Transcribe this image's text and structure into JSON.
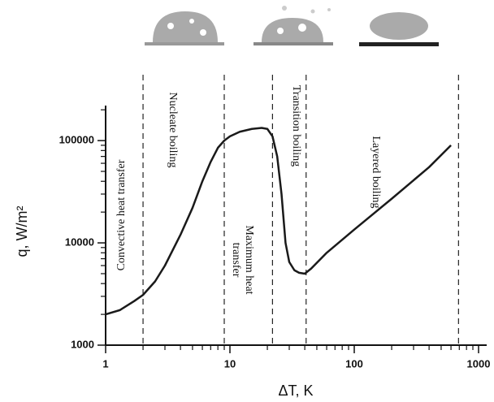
{
  "chart_data": {
    "type": "line",
    "xlabel": "ΔT, K",
    "ylabel": "q, W/m²",
    "xscale": "log",
    "yscale": "log",
    "xlim": [
      1,
      1000
    ],
    "ylim": [
      1000,
      220000
    ],
    "xticks": [
      1,
      10,
      100,
      1000
    ],
    "yticks": [
      1000,
      10000,
      100000
    ],
    "xminorticks": [
      2,
      3,
      4,
      5,
      6,
      7,
      8,
      9,
      20,
      30,
      40,
      50,
      60,
      70,
      80,
      90,
      200,
      300,
      400,
      500,
      600,
      700,
      800,
      900
    ],
    "yminorticks": [
      2000,
      3000,
      4000,
      5000,
      6000,
      7000,
      8000,
      9000,
      20000,
      30000,
      40000,
      50000,
      60000,
      70000,
      80000,
      90000,
      200000
    ],
    "regime_boundaries": [
      2,
      9,
      22,
      41,
      690
    ],
    "annotations": [
      {
        "lines": [
          "Convective heat transfer"
        ]
      },
      {
        "lines": [
          "Nucleate boiling"
        ]
      },
      {
        "lines": [
          "Maximum heat",
          "transfer"
        ]
      },
      {
        "lines": [
          "Transition boiling"
        ]
      },
      {
        "lines": [
          "Layered boiling"
        ]
      }
    ],
    "series": [
      {
        "color": "#1a1a1a",
        "x": [
          1,
          1.3,
          1.7,
          2,
          2.5,
          3,
          4,
          5,
          6,
          7,
          8,
          9,
          10,
          12,
          15,
          18,
          20,
          22,
          24,
          26,
          28,
          30,
          33,
          36,
          40,
          45,
          60,
          100,
          200,
          400,
          600
        ],
        "values": [
          2000,
          2200,
          2700,
          3100,
          4200,
          6000,
          12000,
          22000,
          40000,
          62000,
          85000,
          100000,
          110000,
          122000,
          130000,
          133000,
          130000,
          110000,
          70000,
          30000,
          10000,
          6500,
          5400,
          5100,
          5000,
          5600,
          8000,
          13500,
          27000,
          55000,
          90000
        ]
      }
    ]
  }
}
